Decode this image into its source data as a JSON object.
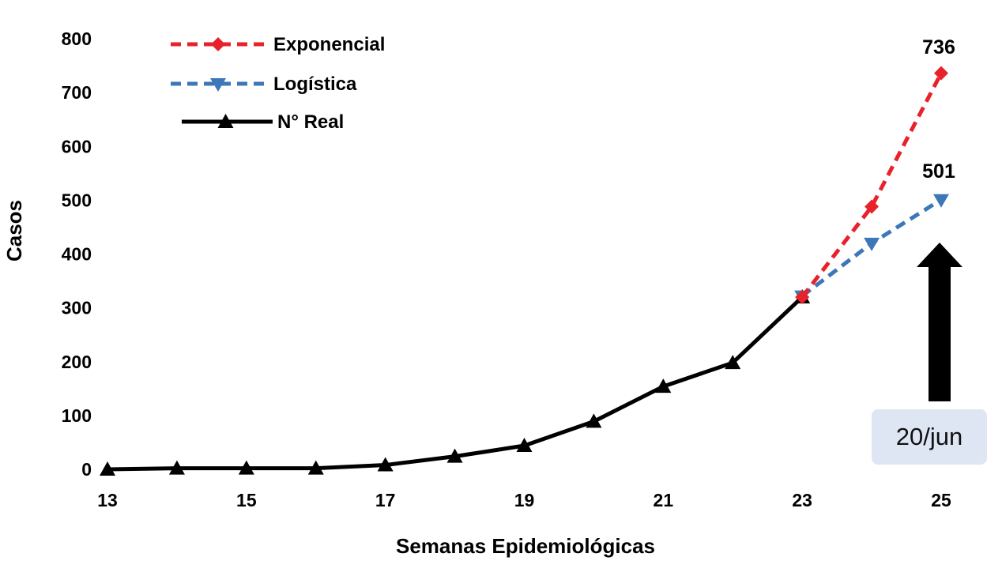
{
  "chart_data": {
    "type": "line",
    "xlabel": "Semanas Epidemiológicas",
    "ylabel": "Casos",
    "xlim": [
      13,
      25
    ],
    "ylim": [
      0,
      800
    ],
    "x_ticks": [
      "13",
      "15",
      "17",
      "19",
      "21",
      "23",
      "25"
    ],
    "y_ticks": [
      "0",
      "100",
      "200",
      "300",
      "400",
      "500",
      "600",
      "700",
      "800"
    ],
    "grid": false,
    "legend_position": "top-left",
    "series": [
      {
        "name": "Exponencial",
        "color": "#e8222a",
        "style": "dashed",
        "marker": "diamond",
        "x": [
          23,
          24,
          25
        ],
        "y": [
          320,
          488,
          736
        ]
      },
      {
        "name": "Logística",
        "color": "#3c77b8",
        "style": "dashed",
        "marker": "triangle-down",
        "x": [
          23,
          24,
          25
        ],
        "y": [
          322,
          420,
          501
        ]
      },
      {
        "name": "N° Real",
        "color": "#000000",
        "style": "solid",
        "marker": "triangle-up",
        "x": [
          13,
          14,
          15,
          16,
          17,
          18,
          19,
          20,
          21,
          22,
          23
        ],
        "y": [
          0,
          2,
          2,
          2,
          8,
          24,
          44,
          89,
          154,
          198,
          320
        ]
      }
    ],
    "annotations": [
      {
        "text": "736"
      },
      {
        "text": "501"
      },
      {
        "text": "20/jun"
      }
    ]
  }
}
